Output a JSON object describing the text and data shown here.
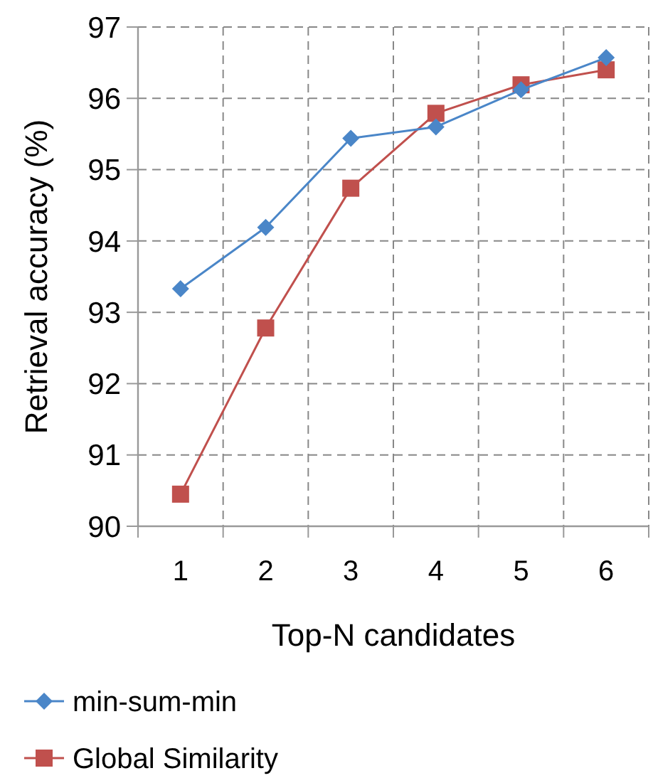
{
  "chart_data": {
    "type": "line",
    "xlabel": "Top-N candidates",
    "ylabel": "Retrieval accuracy (%)",
    "categories": [
      "1",
      "2",
      "3",
      "4",
      "5",
      "6"
    ],
    "series": [
      {
        "name": "min-sum-min",
        "color": "#4a86c8",
        "marker": "diamond",
        "values": [
          93.33,
          94.19,
          95.44,
          95.6,
          96.12,
          96.57
        ]
      },
      {
        "name": "Global Similarity",
        "color": "#c0504d",
        "marker": "square",
        "values": [
          90.45,
          92.78,
          94.74,
          95.79,
          96.19,
          96.4
        ]
      }
    ],
    "ylim": [
      90,
      97
    ],
    "yticks": [
      90,
      91,
      92,
      93,
      94,
      95,
      96,
      97
    ],
    "grid": true,
    "legend": "bottom",
    "line_style": "solid"
  }
}
